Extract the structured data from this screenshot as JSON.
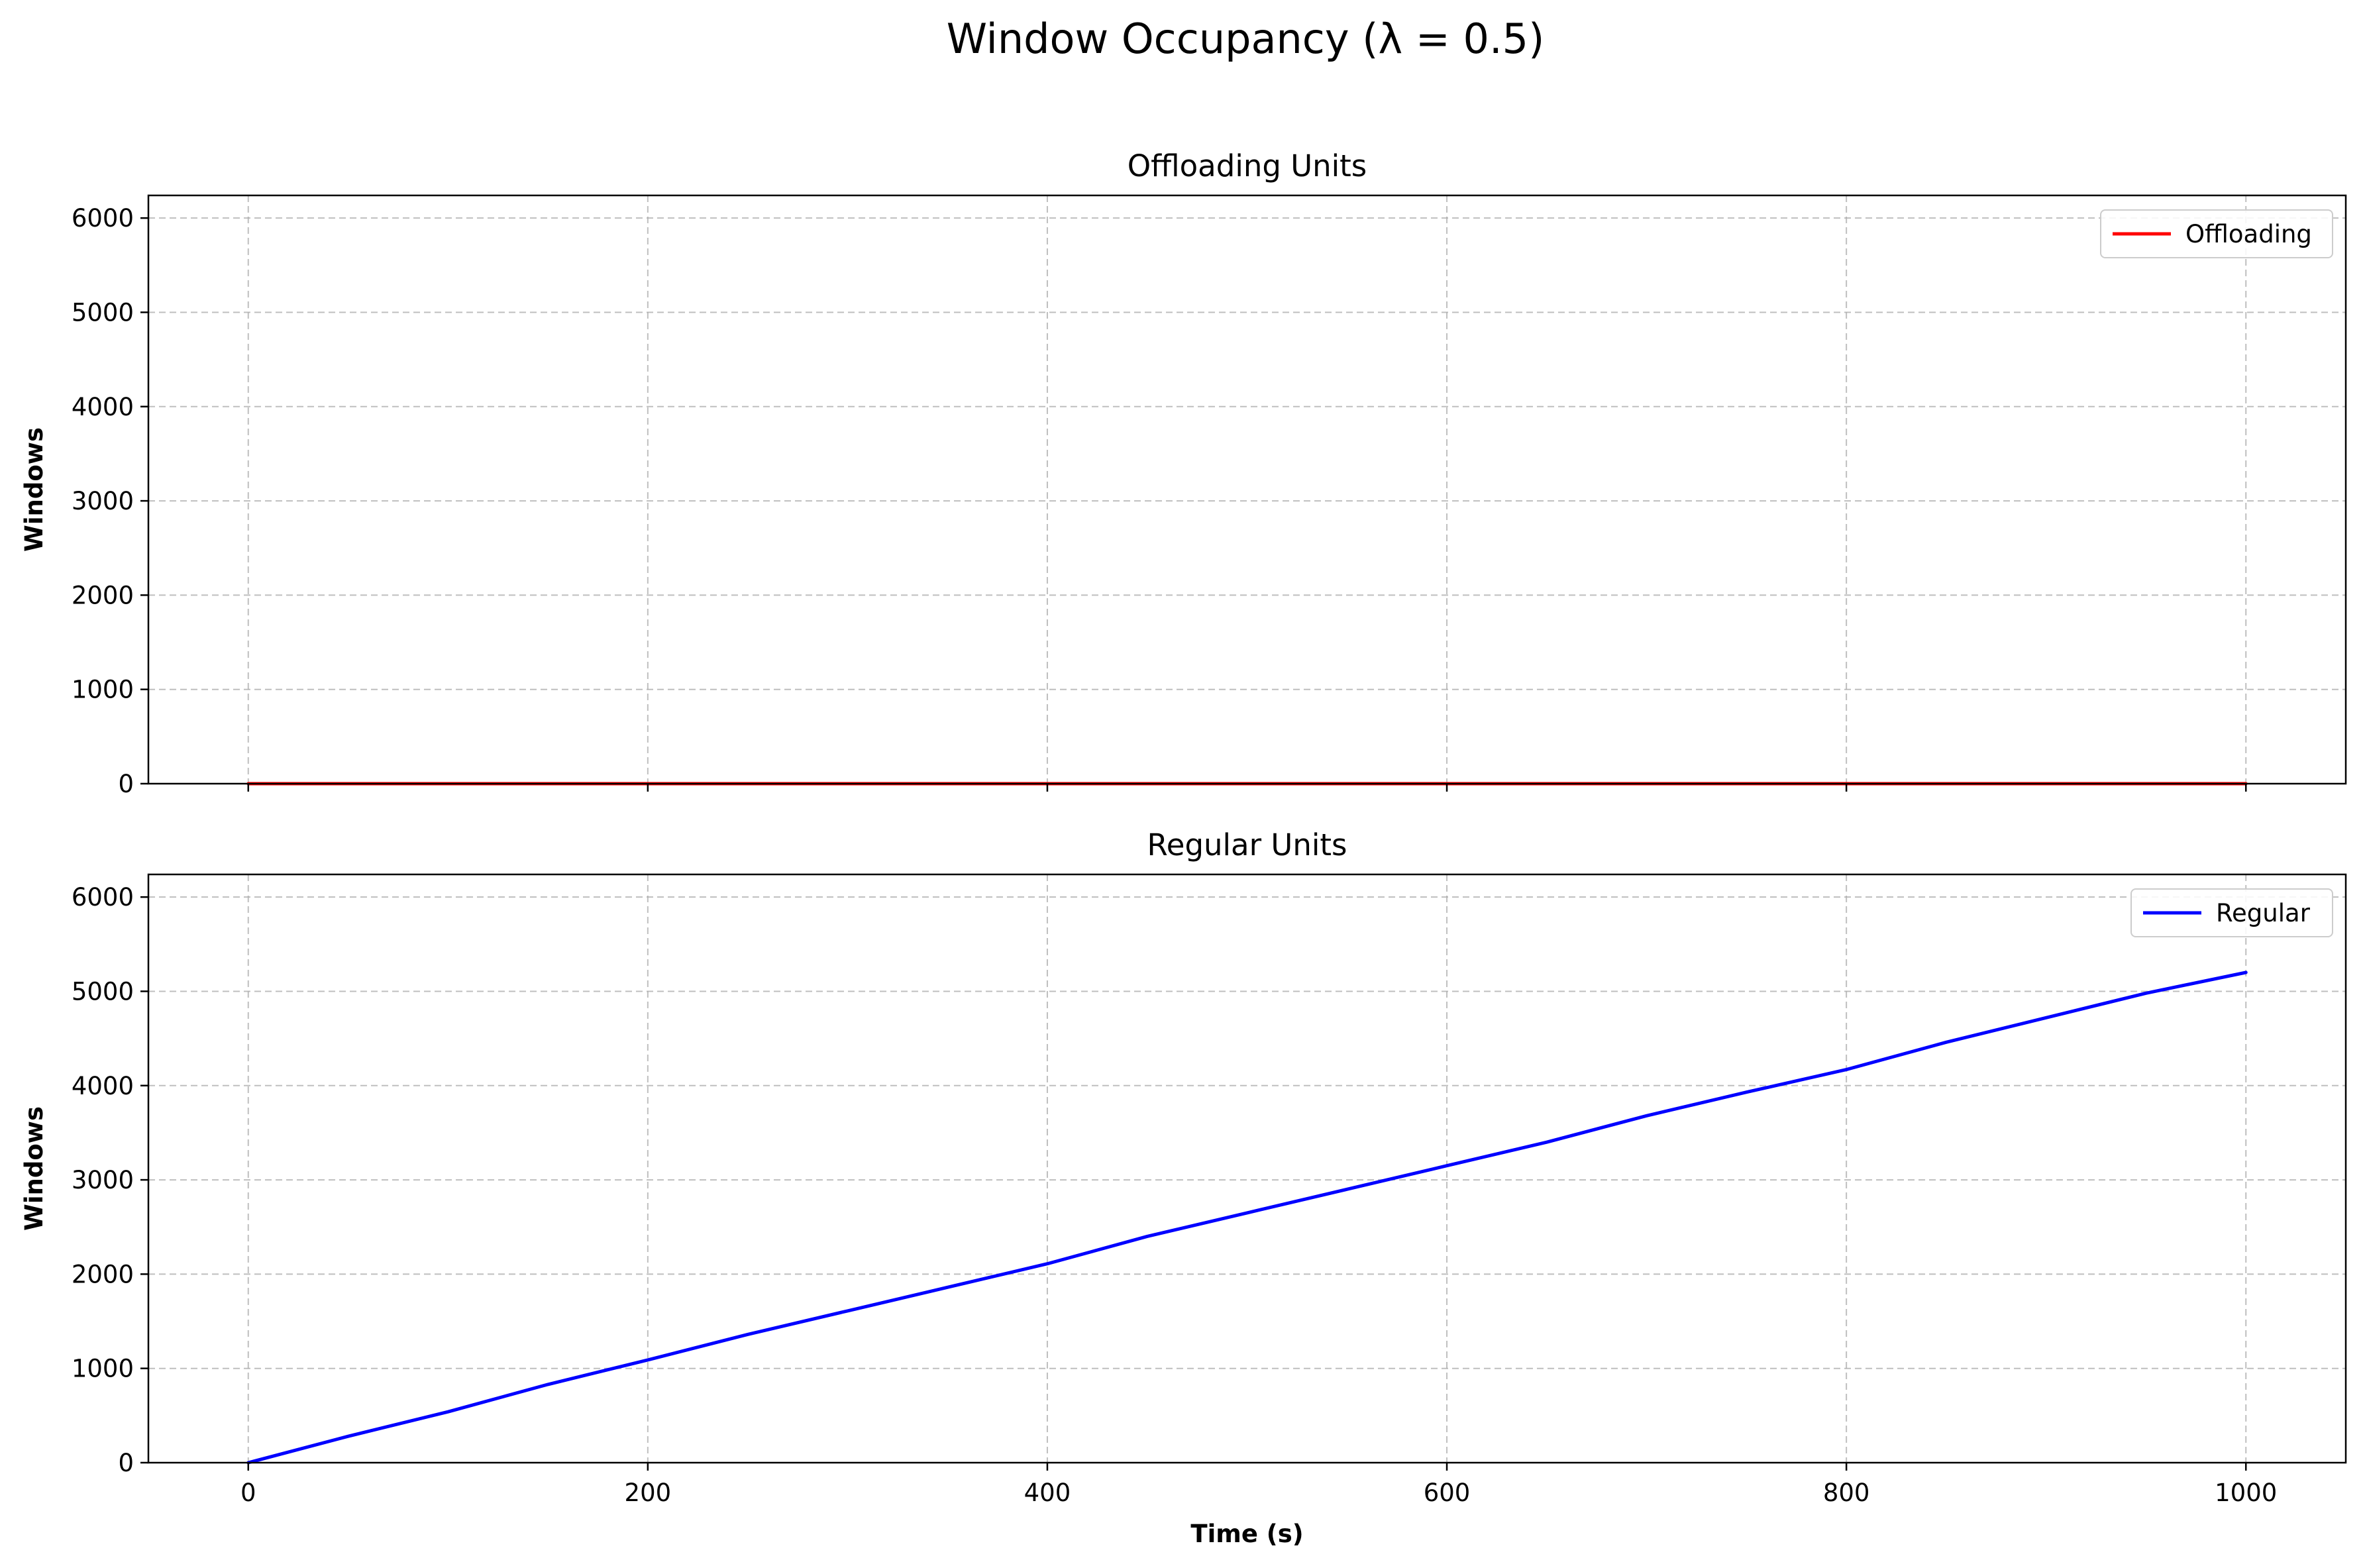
{
  "figure": {
    "title": "Window Occupancy (λ = 0.5)"
  },
  "chart_data": [
    {
      "type": "line",
      "title": "Offloading Units",
      "xlabel": "",
      "ylabel": "Windows",
      "xlim": [
        -50,
        1050
      ],
      "ylim": [
        0,
        6240
      ],
      "x_ticks": [
        0,
        200,
        400,
        600,
        800,
        1000
      ],
      "y_ticks": [
        0,
        1000,
        2000,
        3000,
        4000,
        5000,
        6000
      ],
      "x_tick_labels_visible": false,
      "grid": true,
      "legend": "top-right",
      "series": [
        {
          "name": "Offloading",
          "color": "#ff0000",
          "x": [
            0,
            100,
            200,
            300,
            400,
            500,
            600,
            700,
            800,
            900,
            1000
          ],
          "y": [
            0,
            0,
            0,
            0,
            0,
            0,
            0,
            0,
            0,
            0,
            0
          ]
        }
      ]
    },
    {
      "type": "line",
      "title": "Regular Units",
      "xlabel": "Time (s)",
      "ylabel": "Windows",
      "xlim": [
        -50,
        1050
      ],
      "ylim": [
        0,
        6240
      ],
      "x_ticks": [
        0,
        200,
        400,
        600,
        800,
        1000
      ],
      "y_ticks": [
        0,
        1000,
        2000,
        3000,
        4000,
        5000,
        6000
      ],
      "x_tick_labels_visible": true,
      "grid": true,
      "legend": "top-right",
      "series": [
        {
          "name": "Regular",
          "color": "#0000ff",
          "x": [
            0,
            50,
            100,
            150,
            200,
            250,
            300,
            350,
            400,
            450,
            500,
            550,
            600,
            650,
            700,
            750,
            800,
            850,
            900,
            950,
            1000
          ],
          "y": [
            0,
            280,
            540,
            830,
            1090,
            1360,
            1610,
            1860,
            2110,
            2400,
            2650,
            2900,
            3150,
            3400,
            3680,
            3930,
            4170,
            4460,
            4720,
            4980,
            5200
          ]
        }
      ]
    }
  ]
}
